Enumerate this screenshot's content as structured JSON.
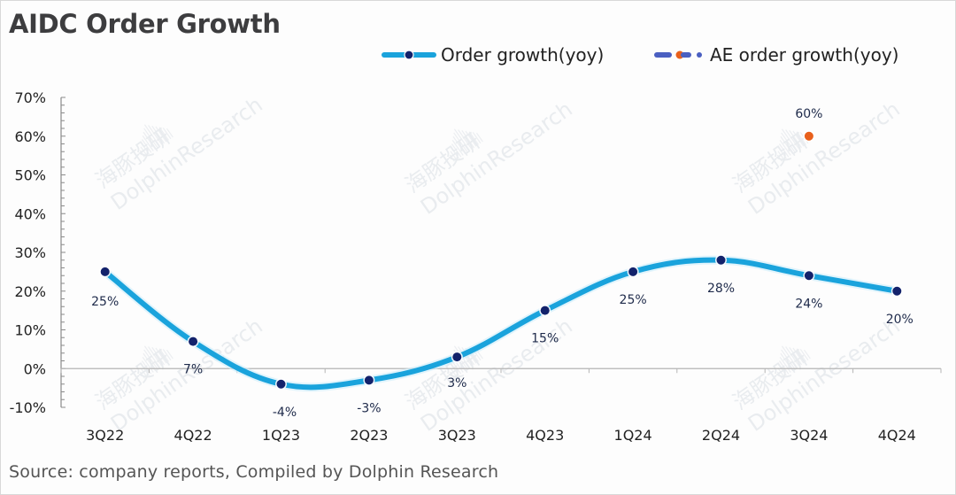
{
  "chart_data": {
    "type": "line",
    "title": "AIDC Order Growth",
    "xlabel": "",
    "ylabel": "",
    "categories": [
      "3Q22",
      "4Q22",
      "1Q23",
      "2Q23",
      "3Q23",
      "4Q23",
      "1Q24",
      "2Q24",
      "3Q24",
      "4Q24"
    ],
    "series": [
      {
        "name": "Order growth(yoy)",
        "values": [
          25,
          7,
          -4,
          -3,
          3,
          15,
          25,
          28,
          24,
          20
        ],
        "labels": [
          "25%",
          "7%",
          "-4%",
          "-3%",
          "3%",
          "15%",
          "25%",
          "28%",
          "24%",
          "20%"
        ],
        "line_color": "#1aa3dc",
        "marker_color": "#13226b",
        "smooth": true
      },
      {
        "name": "AE order growth(yoy)",
        "values": [
          null,
          null,
          null,
          null,
          null,
          null,
          null,
          null,
          60,
          null
        ],
        "labels": [
          null,
          null,
          null,
          null,
          null,
          null,
          null,
          null,
          "60%",
          null
        ],
        "line_color": "#4a5fc1",
        "marker_color": "#e8601c",
        "smooth": false
      }
    ],
    "ylim": [
      -10,
      70
    ],
    "yticks": [
      -10,
      0,
      10,
      20,
      30,
      40,
      50,
      60,
      70
    ],
    "ytick_labels": [
      "-10%",
      "0%",
      "10%",
      "20%",
      "30%",
      "40%",
      "50%",
      "60%",
      "70%"
    ],
    "grid": false,
    "legend": "top-right"
  },
  "legend": {
    "items": [
      {
        "label": "Order growth(yoy)"
      },
      {
        "label": "AE order growth(yoy)"
      }
    ]
  },
  "watermark": {
    "text": "DolphinResearch",
    "cn_text": "海豚投研"
  },
  "footer": {
    "source": "Source: company reports, Compiled by Dolphin Research"
  }
}
